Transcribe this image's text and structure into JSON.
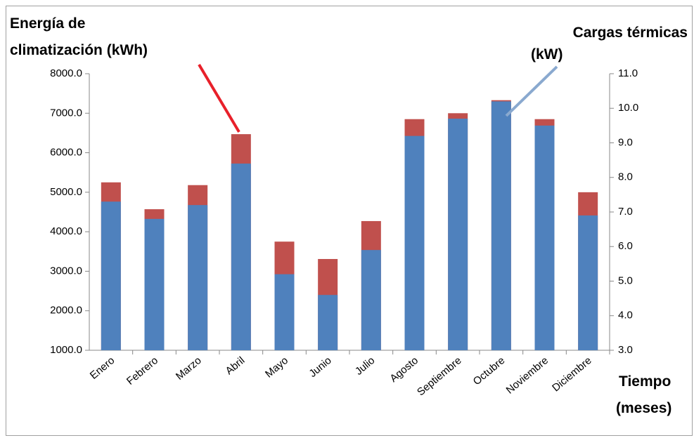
{
  "chart_data": {
    "type": "bar",
    "y_label": [
      "Energía de",
      "climatización (kWh)"
    ],
    "y2_label": [
      "Cargas térmicas",
      "(kW)"
    ],
    "x_label": [
      "Tiempo",
      "(meses)"
    ],
    "categories": [
      "Enero",
      "Febrero",
      "Marzo",
      "Abril",
      "Mayo",
      "Junio",
      "Julio",
      "Agosto",
      "Septiembre",
      "Octubre",
      "Noviembre",
      "Diciembre"
    ],
    "series": [
      {
        "color": "#c0504d",
        "values": [
          5250,
          4570,
          5180,
          6470,
          3750,
          3310,
          4270,
          6850,
          7000,
          7330,
          6850,
          5000
        ]
      },
      {
        "color": "#4f81bd",
        "axis": "y2",
        "values": [
          7.3,
          6.8,
          7.2,
          8.4,
          5.2,
          4.6,
          5.9,
          9.2,
          9.7,
          10.2,
          9.5,
          6.9
        ]
      }
    ],
    "ylim": [
      1000,
      8000
    ],
    "yticks": [
      {
        "value": 1000,
        "label": "1000.0"
      },
      {
        "value": 2000,
        "label": "2000.0"
      },
      {
        "value": 3000,
        "label": "3000.0"
      },
      {
        "value": 4000,
        "label": "4000.0"
      },
      {
        "value": 5000,
        "label": "5000.0"
      },
      {
        "value": 6000,
        "label": "6000.0"
      },
      {
        "value": 7000,
        "label": "7000.0"
      },
      {
        "value": 8000,
        "label": "8000.0"
      }
    ],
    "y2lim": [
      3,
      11
    ],
    "y2ticks": [
      {
        "value": 3,
        "label": "3.0"
      },
      {
        "value": 4,
        "label": "4.0"
      },
      {
        "value": 5,
        "label": "5.0"
      },
      {
        "value": 6,
        "label": "6.0"
      },
      {
        "value": 7,
        "label": "7.0"
      },
      {
        "value": 8,
        "label": "8.0"
      },
      {
        "value": 9,
        "label": "9.0"
      },
      {
        "value": 10,
        "label": "10.0"
      },
      {
        "value": 11,
        "label": "11.0"
      }
    ]
  }
}
